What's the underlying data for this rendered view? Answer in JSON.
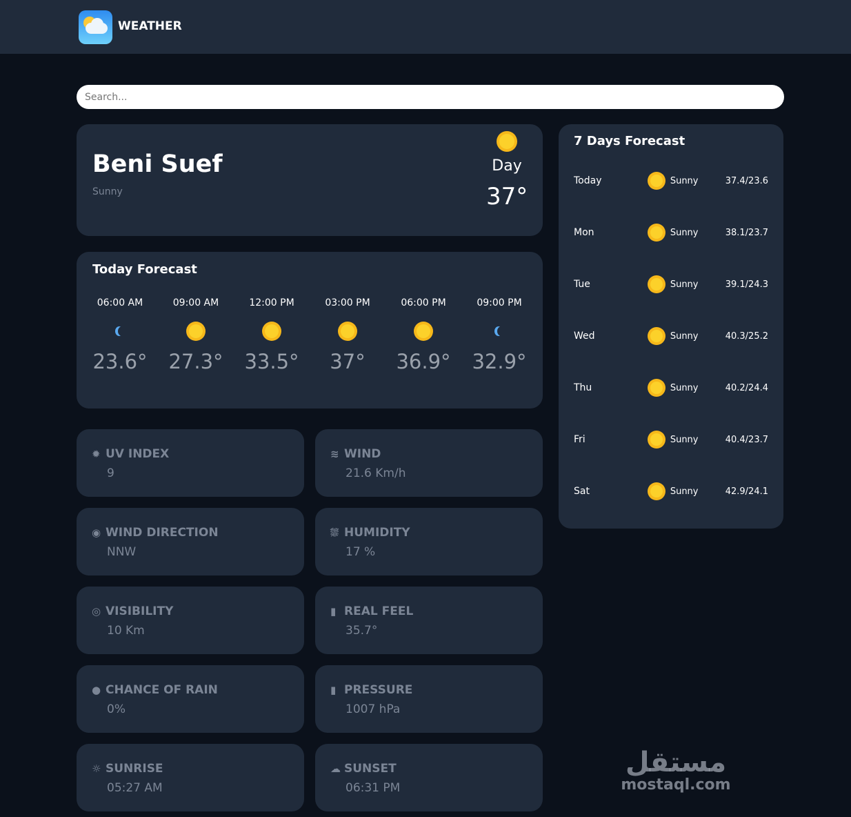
{
  "header": {
    "title": "WEATHER",
    "logo_icon": "sun-cloud-icon"
  },
  "search": {
    "placeholder": "Search..."
  },
  "current": {
    "city": "Beni Suef",
    "condition": "Sunny",
    "period": "Day",
    "temperature": "37°",
    "icon": "sun-icon"
  },
  "today_forecast": {
    "title": "Today Forecast",
    "hours": [
      {
        "time": "06:00 AM",
        "icon": "moon-icon",
        "temp": "23.6°"
      },
      {
        "time": "09:00 AM",
        "icon": "sun-icon",
        "temp": "27.3°"
      },
      {
        "time": "12:00 PM",
        "icon": "sun-icon",
        "temp": "33.5°"
      },
      {
        "time": "03:00 PM",
        "icon": "sun-icon",
        "temp": "37°"
      },
      {
        "time": "06:00 PM",
        "icon": "sun-icon",
        "temp": "36.9°"
      },
      {
        "time": "09:00 PM",
        "icon": "moon-icon",
        "temp": "32.9°"
      }
    ]
  },
  "stats": [
    {
      "label": "UV INDEX",
      "value": "9",
      "icon": "gear-sun-icon",
      "glyph": "✹"
    },
    {
      "label": "WIND",
      "value": "21.6 Km/h",
      "icon": "wind-icon",
      "glyph": "≋"
    },
    {
      "label": "WIND DIRECTION",
      "value": "NNW",
      "icon": "compass-icon",
      "glyph": "◉"
    },
    {
      "label": "HUMIDITY",
      "value": "17 %",
      "icon": "shower-icon",
      "glyph": "⛆"
    },
    {
      "label": "VISIBILITY",
      "value": "10 Km",
      "icon": "eye-icon",
      "glyph": "◎"
    },
    {
      "label": "REAL FEEL",
      "value": "35.7°",
      "icon": "thermometer-icon",
      "glyph": "▮"
    },
    {
      "label": "CHANCE OF RAIN",
      "value": "0%",
      "icon": "droplet-icon",
      "glyph": "●"
    },
    {
      "label": "PRESSURE",
      "value": "1007 hPa",
      "icon": "thermometer-icon",
      "glyph": "▮"
    },
    {
      "label": "SUNRISE",
      "value": "05:27 AM",
      "icon": "sunrise-icon",
      "glyph": "☼"
    },
    {
      "label": "SUNSET",
      "value": "06:31 PM",
      "icon": "sunset-icon",
      "glyph": "☁"
    }
  ],
  "week": {
    "title": "7 Days Forecast",
    "days": [
      {
        "day": "Today",
        "icon": "sun-icon",
        "cond": "Sunny",
        "range": "37.4/23.6"
      },
      {
        "day": "Mon",
        "icon": "sun-icon",
        "cond": "Sunny",
        "range": "38.1/23.7"
      },
      {
        "day": "Tue",
        "icon": "sun-icon",
        "cond": "Sunny",
        "range": "39.1/24.3"
      },
      {
        "day": "Wed",
        "icon": "sun-icon",
        "cond": "Sunny",
        "range": "40.3/25.2"
      },
      {
        "day": "Thu",
        "icon": "sun-icon",
        "cond": "Sunny",
        "range": "40.2/24.4"
      },
      {
        "day": "Fri",
        "icon": "sun-icon",
        "cond": "Sunny",
        "range": "40.4/23.7"
      },
      {
        "day": "Sat",
        "icon": "sun-icon",
        "cond": "Sunny",
        "range": "42.9/24.1"
      }
    ]
  },
  "watermark": {
    "arabic": "مستقل",
    "latin": "mostaql.com"
  },
  "colors": {
    "background": "#0b111b",
    "card": "#202b3b",
    "sun": "#fcd12a",
    "moon": "#5aa9f0",
    "muted": "#7b8595"
  }
}
